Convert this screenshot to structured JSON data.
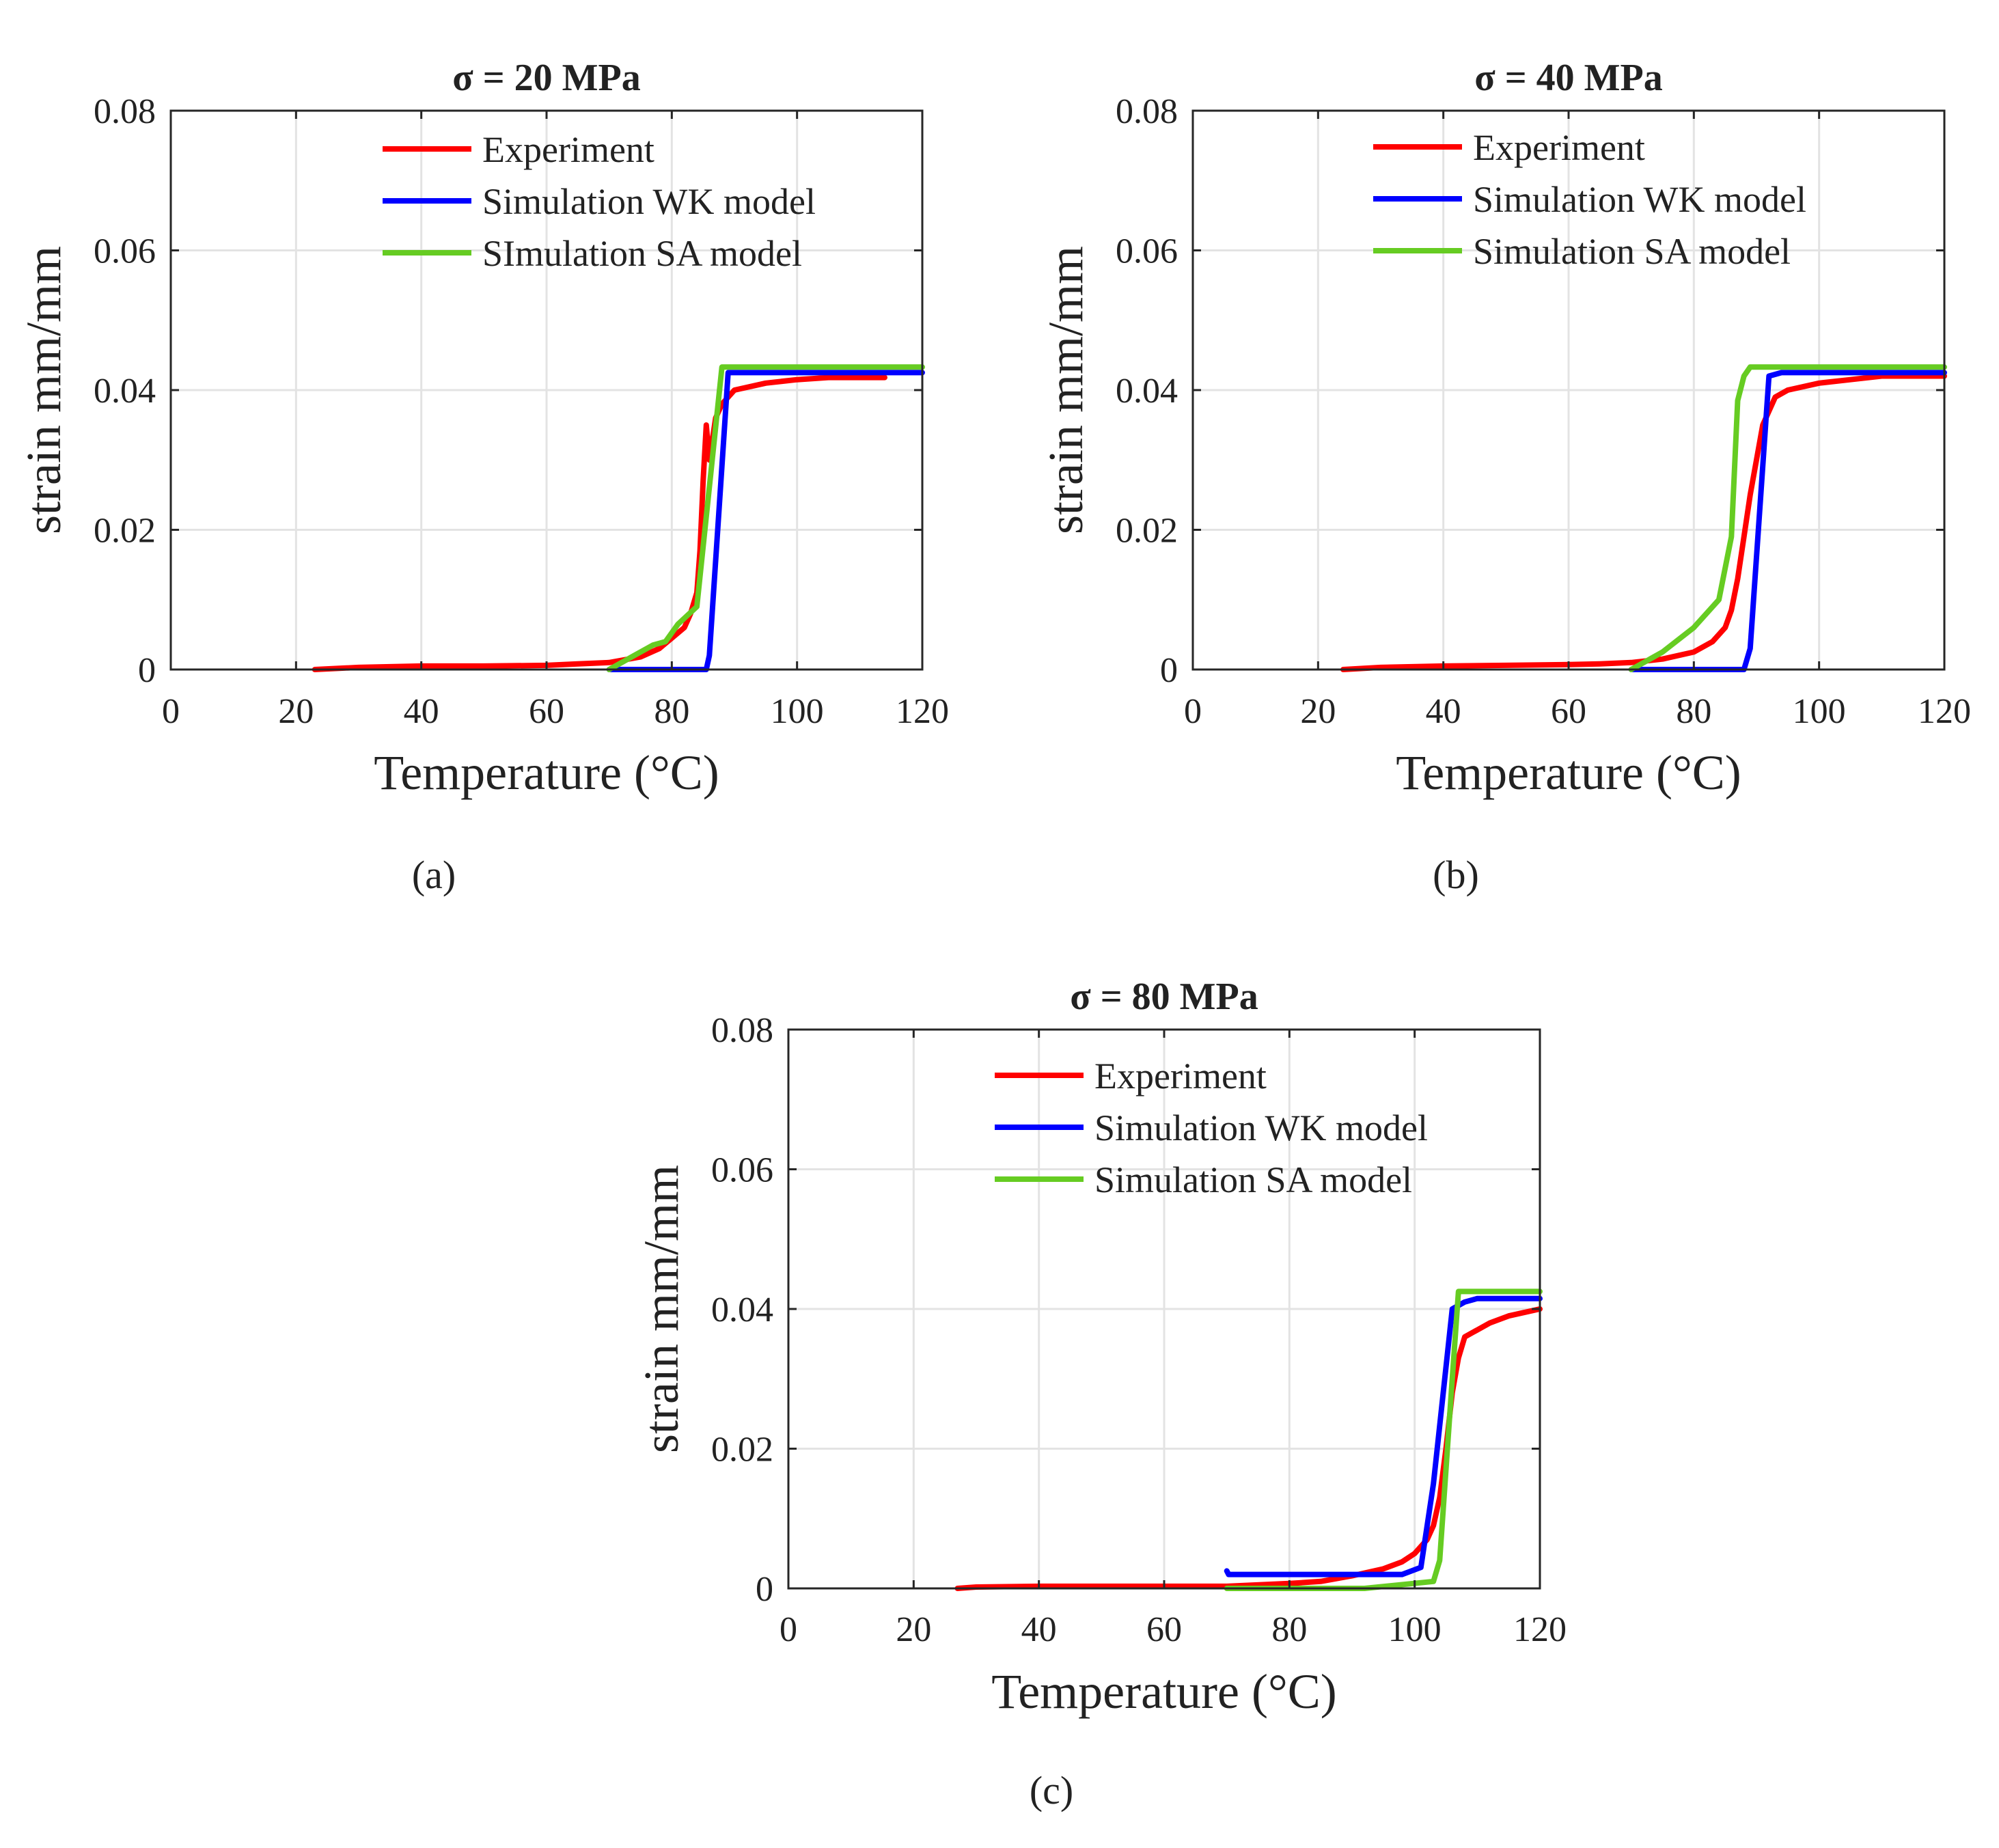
{
  "chart_data": [
    {
      "type": "line",
      "panel_label": "(a)",
      "title": "σ = 20 MPa",
      "xlabel": "Temperature (°C)",
      "ylabel": "strain mm/mm",
      "xlim": [
        0,
        120
      ],
      "ylim": [
        0,
        0.08
      ],
      "xticks": [
        0,
        20,
        40,
        60,
        80,
        100,
        120
      ],
      "yticks": [
        0,
        0.02,
        0.04,
        0.06,
        0.08
      ],
      "xtick_labels": [
        "0",
        "20",
        "40",
        "60",
        "80",
        "100",
        "120"
      ],
      "ytick_labels": [
        "0",
        "0.02",
        "0.04",
        "0.06",
        "0.08"
      ],
      "grid": true,
      "legend_position": "top",
      "series": [
        {
          "name": "Experiment",
          "color": "#ff0000",
          "x": [
            23,
            30,
            40,
            50,
            60,
            65,
            70,
            75,
            78,
            80,
            82,
            83,
            84,
            84.5,
            85,
            85.5,
            86,
            86.5,
            87,
            88,
            90,
            95,
            100,
            105,
            110,
            114
          ],
          "y": [
            0,
            0.0003,
            0.0005,
            0.0005,
            0.0006,
            0.0008,
            0.001,
            0.0018,
            0.003,
            0.0045,
            0.006,
            0.008,
            0.011,
            0.017,
            0.027,
            0.035,
            0.03,
            0.033,
            0.036,
            0.038,
            0.04,
            0.041,
            0.0415,
            0.0418,
            0.0418,
            0.0418
          ]
        },
        {
          "name": "Simulation WK model",
          "color": "#0000ff",
          "x": [
            70,
            85.5,
            86,
            89,
            120
          ],
          "y": [
            0,
            0,
            0.002,
            0.0425,
            0.0425
          ]
        },
        {
          "name": "SImulation SA model",
          "color": "#66cc22",
          "x": [
            70,
            74,
            77,
            79,
            81,
            84,
            88,
            120
          ],
          "y": [
            0,
            0.002,
            0.0035,
            0.004,
            0.0065,
            0.009,
            0.0433,
            0.0433
          ]
        }
      ]
    },
    {
      "type": "line",
      "panel_label": "(b)",
      "title": "σ = 40 MPa",
      "xlabel": "Temperature (°C)",
      "ylabel": "strain mm/mm",
      "xlim": [
        0,
        120
      ],
      "ylim": [
        0,
        0.08
      ],
      "xticks": [
        0,
        20,
        40,
        60,
        80,
        100,
        120
      ],
      "yticks": [
        0,
        0.02,
        0.04,
        0.06,
        0.08
      ],
      "xtick_labels": [
        "0",
        "20",
        "40",
        "60",
        "80",
        "100",
        "120"
      ],
      "ytick_labels": [
        "0",
        "0.02",
        "0.04",
        "0.06",
        "0.08"
      ],
      "grid": true,
      "legend_position": "top",
      "series": [
        {
          "name": "Experiment",
          "color": "#ff0000",
          "x": [
            24,
            30,
            40,
            50,
            60,
            65,
            70,
            75,
            80,
            83,
            85,
            86,
            87,
            88,
            89,
            90,
            91,
            92,
            93,
            95,
            100,
            105,
            110,
            120
          ],
          "y": [
            0,
            0.0003,
            0.0005,
            0.0006,
            0.0007,
            0.0008,
            0.001,
            0.0015,
            0.0025,
            0.004,
            0.006,
            0.0085,
            0.013,
            0.019,
            0.025,
            0.03,
            0.035,
            0.037,
            0.039,
            0.04,
            0.041,
            0.0415,
            0.042,
            0.042
          ]
        },
        {
          "name": "Simulation WK model",
          "color": "#0000ff",
          "x": [
            70,
            88,
            89,
            92,
            94,
            120
          ],
          "y": [
            0,
            0,
            0.003,
            0.042,
            0.0425,
            0.0425
          ]
        },
        {
          "name": "Simulation SA model",
          "color": "#66cc22",
          "x": [
            70,
            75,
            80,
            84,
            86,
            87,
            88,
            89,
            120
          ],
          "y": [
            0,
            0.0025,
            0.006,
            0.01,
            0.019,
            0.0385,
            0.042,
            0.0433,
            0.0433
          ]
        }
      ]
    },
    {
      "type": "line",
      "panel_label": "(c)",
      "title": "σ = 80 MPa",
      "xlabel": "Temperature (°C)",
      "ylabel": "strain mm/mm",
      "xlim": [
        0,
        120
      ],
      "ylim": [
        0,
        0.08
      ],
      "xticks": [
        0,
        20,
        40,
        60,
        80,
        100,
        120
      ],
      "yticks": [
        0,
        0.02,
        0.04,
        0.06,
        0.08
      ],
      "xtick_labels": [
        "0",
        "20",
        "40",
        "60",
        "80",
        "100",
        "120"
      ],
      "ytick_labels": [
        "0",
        "0.02",
        "0.04",
        "0.06",
        "0.08"
      ],
      "grid": true,
      "legend_position": "top",
      "series": [
        {
          "name": "Experiment",
          "color": "#ff0000",
          "x": [
            27,
            30,
            40,
            50,
            60,
            70,
            80,
            85,
            90,
            95,
            98,
            100,
            102,
            103,
            104,
            105,
            106,
            107,
            108,
            110,
            112,
            115,
            120
          ],
          "y": [
            0,
            0.0002,
            0.0003,
            0.0003,
            0.0003,
            0.0003,
            0.0007,
            0.001,
            0.0018,
            0.0028,
            0.0038,
            0.005,
            0.007,
            0.009,
            0.013,
            0.02,
            0.028,
            0.033,
            0.036,
            0.037,
            0.038,
            0.039,
            0.04
          ]
        },
        {
          "name": "Simulation WK model",
          "color": "#0000ff",
          "x": [
            70,
            70.3,
            98,
            101,
            103,
            106,
            108,
            110,
            120
          ],
          "y": [
            0.0025,
            0.002,
            0.002,
            0.003,
            0.015,
            0.04,
            0.041,
            0.0415,
            0.0415
          ]
        },
        {
          "name": "Simulation SA model",
          "color": "#66cc22",
          "x": [
            70,
            92,
            103,
            104,
            106,
            107,
            120
          ],
          "y": [
            0,
            0,
            0.001,
            0.004,
            0.03,
            0.0425,
            0.0425
          ]
        }
      ]
    }
  ]
}
